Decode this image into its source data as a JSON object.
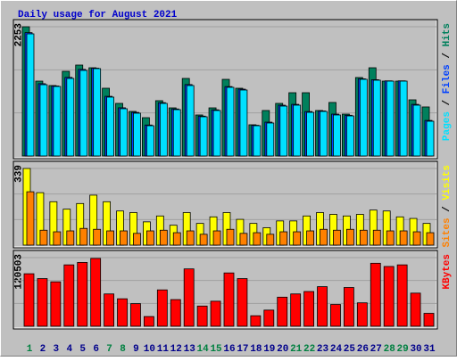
{
  "title": "Daily usage for August 2021",
  "separator": " / ",
  "categories": [
    "1",
    "2",
    "3",
    "4",
    "5",
    "6",
    "7",
    "8",
    "9",
    "10",
    "11",
    "12",
    "13",
    "14",
    "15",
    "16",
    "17",
    "18",
    "19",
    "20",
    "21",
    "22",
    "23",
    "24",
    "25",
    "26",
    "27",
    "28",
    "29",
    "30",
    "31"
  ],
  "category_colors": [
    "#008040",
    "#00008b",
    "#00008b",
    "#00008b",
    "#00008b",
    "#00008b",
    "#008040",
    "#008040",
    "#00008b",
    "#00008b",
    "#00008b",
    "#00008b",
    "#00008b",
    "#008040",
    "#008040",
    "#00008b",
    "#00008b",
    "#00008b",
    "#00008b",
    "#00008b",
    "#008040",
    "#008040",
    "#00008b",
    "#00008b",
    "#00008b",
    "#00008b",
    "#00008b",
    "#008040",
    "#008040",
    "#00008b",
    "#00008b"
  ],
  "chart_data": [
    {
      "type": "bar",
      "ylim": [
        0,
        2253
      ],
      "yticks": [
        2253
      ],
      "series": [
        {
          "name": "Hits",
          "color": "#00805c",
          "values": [
            2253,
            1305,
            1228,
            1476,
            1585,
            1538,
            1181,
            917,
            777,
            668,
            964,
            839,
            1352,
            715,
            839,
            1336,
            1181,
            544,
            793,
            917,
            1103,
            1103,
            793,
            933,
            730,
            1368,
            1538,
            1305,
            1305,
            979,
            855
          ]
        },
        {
          "name": "Files",
          "color": "#0040ff",
          "values": [
            2150,
            1260,
            1220,
            1370,
            1510,
            1530,
            1040,
            840,
            760,
            540,
            930,
            820,
            1245,
            695,
            805,
            1210,
            1165,
            535,
            590,
            885,
            900,
            775,
            785,
            730,
            710,
            1345,
            1330,
            1310,
            1310,
            900,
            620
          ]
        },
        {
          "name": "Pages",
          "color": "#00e0ff",
          "values": [
            2129,
            1243,
            1212,
            1352,
            1492,
            1523,
            1026,
            824,
            746,
            528,
            917,
            808,
            1228,
            684,
            793,
            1197,
            1150,
            528,
            575,
            870,
            886,
            761,
            777,
            715,
            699,
            1337,
            1321,
            1305,
            1305,
            886,
            606
          ]
        }
      ]
    },
    {
      "type": "bar",
      "ylim": [
        0,
        339
      ],
      "yticks": [
        339
      ],
      "series": [
        {
          "name": "Visits",
          "color": "#ffff00",
          "values": [
            339,
            232,
            192,
            159,
            184,
            221,
            192,
            151,
            144,
            103,
            129,
            88,
            144,
            96,
            125,
            144,
            114,
            96,
            77,
            107,
            107,
            129,
            144,
            136,
            129,
            136,
            155,
            151,
            125,
            118,
            96
          ]
        },
        {
          "name": "Sites",
          "color": "#ff8000",
          "values": [
            236,
            66,
            59,
            63,
            74,
            70,
            63,
            63,
            52,
            63,
            66,
            55,
            63,
            48,
            63,
            70,
            52,
            55,
            48,
            59,
            59,
            63,
            70,
            66,
            70,
            66,
            66,
            63,
            63,
            59,
            55
          ]
        }
      ]
    },
    {
      "type": "bar",
      "ylim": [
        0,
        120503
      ],
      "yticks": [
        120503
      ],
      "series": [
        {
          "name": "KBytes",
          "color": "#ff0000",
          "values": [
            92170,
            83660,
            77990,
            107770,
            112020,
            119110,
            56720,
            48210,
            39700,
            17020,
            63810,
            46790,
            100680,
            35450,
            43960,
            93590,
            83660,
            18430,
            28360,
            51050,
            56720,
            60970,
            69480,
            38290,
            68060,
            41120,
            110600,
            104930,
            107770,
            58140,
            22690
          ]
        }
      ]
    }
  ]
}
